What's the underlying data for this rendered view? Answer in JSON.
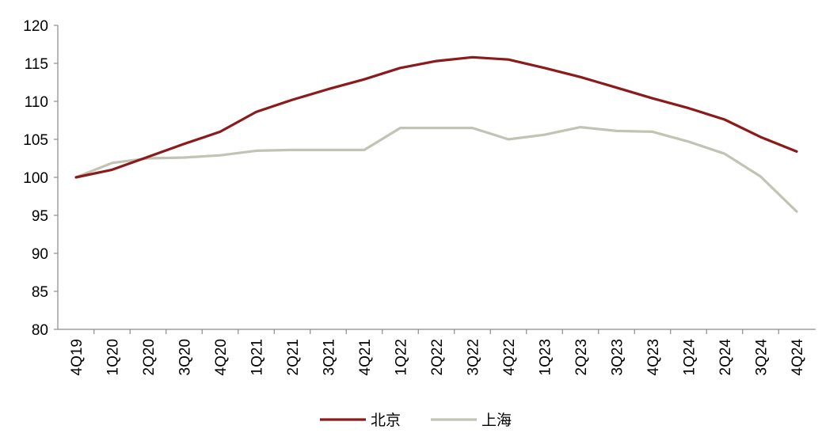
{
  "chart_data": {
    "type": "line",
    "categories": [
      "4Q19",
      "1Q20",
      "2Q20",
      "3Q20",
      "4Q20",
      "1Q21",
      "2Q21",
      "3Q21",
      "4Q21",
      "1Q22",
      "2Q22",
      "3Q22",
      "4Q22",
      "1Q23",
      "2Q23",
      "3Q23",
      "4Q23",
      "1Q24",
      "2Q24",
      "3Q24",
      "4Q24"
    ],
    "ylim": [
      80,
      120
    ],
    "yticks": [
      80,
      85,
      90,
      95,
      100,
      105,
      110,
      115,
      120
    ],
    "grid": false,
    "legend_position": "bottom-center",
    "series": [
      {
        "name": "北京",
        "color": "#8b1a1a",
        "values": [
          100.0,
          101.0,
          102.7,
          104.4,
          106.0,
          108.6,
          110.2,
          111.6,
          112.9,
          114.4,
          115.3,
          115.8,
          115.5,
          114.4,
          113.2,
          111.8,
          110.4,
          109.1,
          107.6,
          105.3,
          103.4
        ]
      },
      {
        "name": "上海",
        "color": "#c3c3b3",
        "values": [
          100.0,
          101.9,
          102.5,
          102.6,
          102.9,
          103.5,
          103.6,
          103.6,
          103.6,
          106.5,
          106.5,
          106.5,
          105.0,
          105.6,
          106.6,
          106.1,
          106.0,
          104.7,
          103.1,
          100.1,
          95.5
        ]
      }
    ]
  }
}
